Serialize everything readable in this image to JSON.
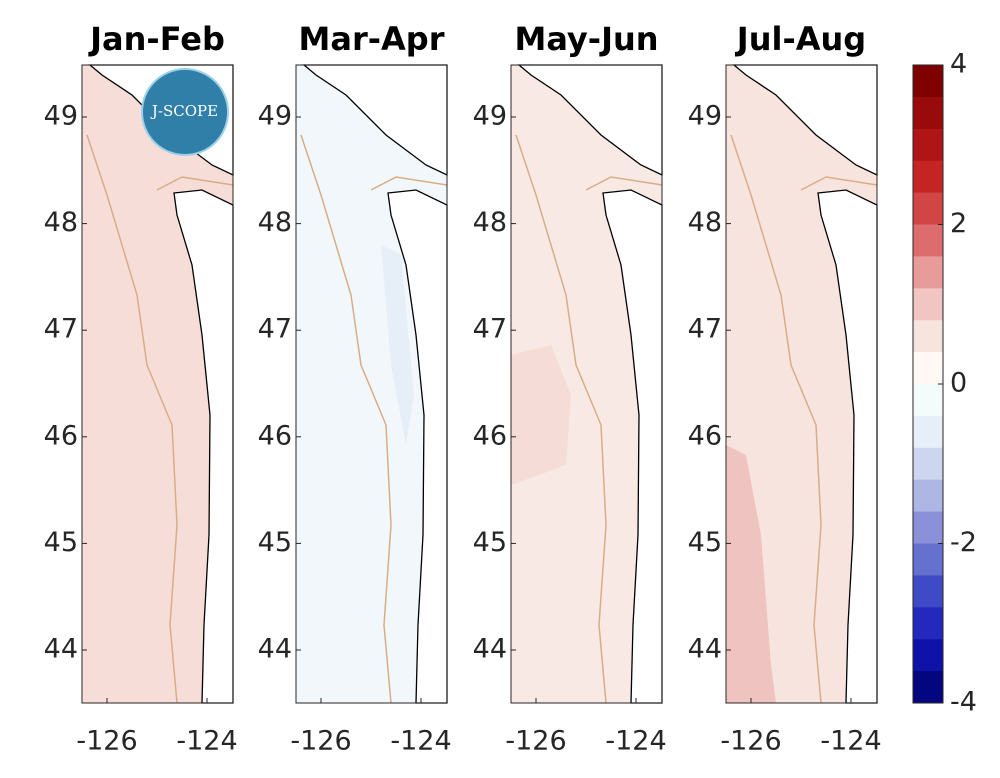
{
  "panels": [
    {
      "title": "Jan-Feb"
    },
    {
      "title": "Mar-Apr"
    },
    {
      "title": "May-Jun"
    },
    {
      "title": "Jul-Aug"
    }
  ],
  "y_axis_labels": [
    "49",
    "48",
    "47",
    "46",
    "45",
    "44"
  ],
  "x_axis_labels": [
    "-126",
    "-124"
  ],
  "logo": "J-SCOPE",
  "colorbar": {
    "labels": [
      "4",
      "2",
      "0",
      "-2",
      "-4"
    ]
  }
}
